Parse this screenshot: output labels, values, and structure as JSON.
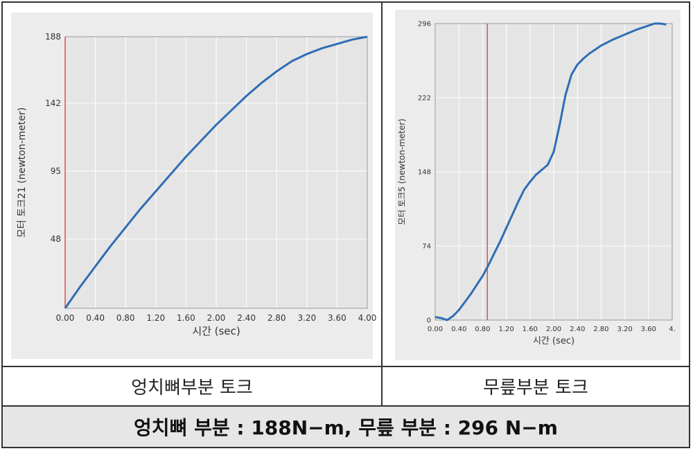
{
  "captions": {
    "left": "엉치뼈부분 토크",
    "right": "무릎부분 토크",
    "summary": "엉치뼈 부분 : 188N−m, 무릎 부분 : 296 N−m"
  },
  "colors": {
    "line": "#2e6db4",
    "marker": "#d9534f",
    "plot_bg": "#e5e5e5",
    "grid": "#ffffff"
  },
  "chart_data": [
    {
      "type": "line",
      "title": "",
      "xlabel": "시간 (sec)",
      "ylabel": "모터 토크21 (newton-meter)",
      "xlim": [
        0,
        4.0
      ],
      "ylim": [
        0,
        188
      ],
      "x_ticks": [
        "0.00",
        "0.40",
        "0.80",
        "1.20",
        "1.60",
        "2.00",
        "2.40",
        "2.80",
        "3.20",
        "3.60",
        "4.00"
      ],
      "y_ticks": [
        "48",
        "95",
        "142",
        "188"
      ],
      "y_tick_values": [
        48,
        95,
        142,
        188
      ],
      "marker_x": 0.0,
      "grid": true,
      "series": [
        {
          "x": [
            0,
            0.2,
            0.4,
            0.6,
            0.8,
            1.0,
            1.2,
            1.4,
            1.6,
            1.8,
            2.0,
            2.2,
            2.4,
            2.6,
            2.8,
            3.0,
            3.2,
            3.4,
            3.6,
            3.8,
            4.0
          ],
          "y": [
            0,
            15,
            29,
            43,
            56,
            69,
            81,
            93,
            105,
            116,
            127,
            137,
            147,
            156,
            164,
            171,
            176,
            180,
            183,
            186,
            188
          ]
        }
      ]
    },
    {
      "type": "line",
      "title": "",
      "xlabel": "시간 (sec)",
      "ylabel": "모터 토크5 (newton-meter)",
      "xlim": [
        0,
        4.0
      ],
      "ylim": [
        0,
        296
      ],
      "x_ticks": [
        "0.00",
        "0.40",
        "0.80",
        "1.20",
        "1.60",
        "2.00",
        "2.40",
        "2.80",
        "3.20",
        "3.60",
        "4."
      ],
      "y_ticks": [
        "0",
        "74",
        "148",
        "222",
        "296"
      ],
      "y_tick_values": [
        0,
        74,
        148,
        222,
        296
      ],
      "marker_x": 0.88,
      "grid": true,
      "series": [
        {
          "x": [
            0,
            0.1,
            0.2,
            0.3,
            0.4,
            0.5,
            0.6,
            0.7,
            0.8,
            0.9,
            1.0,
            1.1,
            1.2,
            1.3,
            1.4,
            1.5,
            1.6,
            1.7,
            1.8,
            1.9,
            2.0,
            2.1,
            2.2,
            2.3,
            2.4,
            2.5,
            2.6,
            2.7,
            2.8,
            2.9,
            3.0,
            3.2,
            3.4,
            3.6,
            3.7,
            3.8,
            3.9
          ],
          "y": [
            3,
            2,
            0,
            4,
            10,
            18,
            26,
            35,
            44,
            55,
            67,
            79,
            92,
            105,
            118,
            130,
            138,
            145,
            150,
            155,
            168,
            195,
            225,
            245,
            255,
            261,
            266,
            270,
            274,
            277,
            280,
            285,
            290,
            294,
            296,
            296,
            295
          ]
        }
      ]
    }
  ]
}
